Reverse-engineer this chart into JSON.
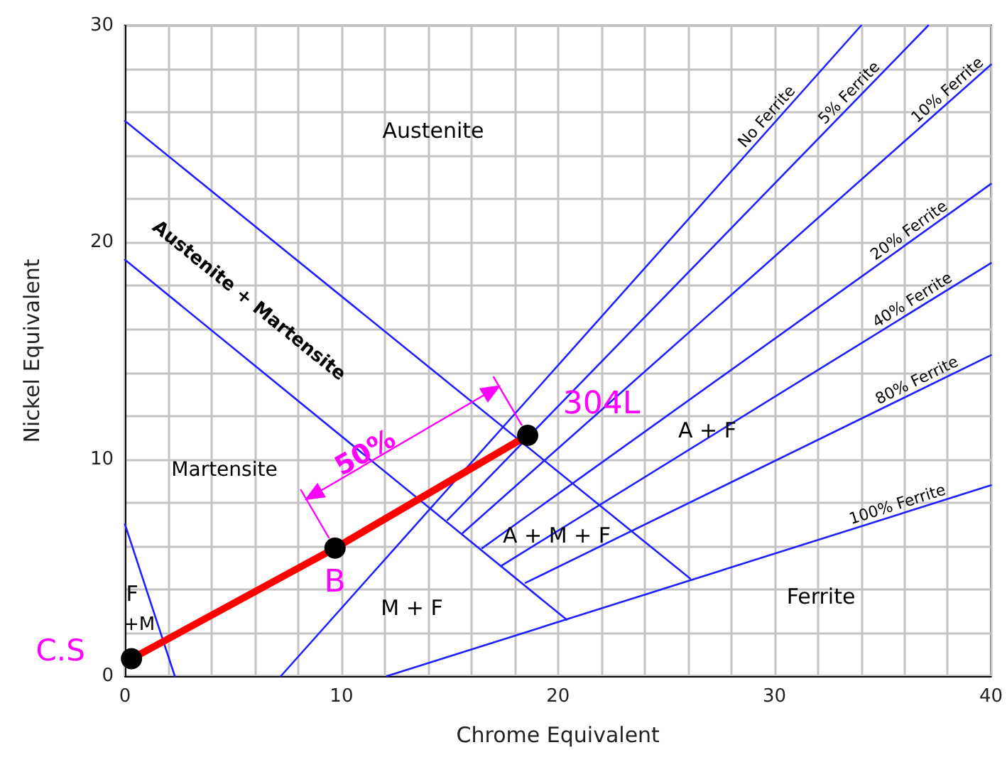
{
  "chart_data": {
    "type": "line",
    "xlabel": "Chrome Equivalent",
    "ylabel": "Nickel Equivalent",
    "xlim": [
      0,
      40
    ],
    "ylim": [
      0,
      30
    ],
    "xticks": [
      0,
      {
        "value": 2,
        "label": null
      },
      {
        "value": 4,
        "label": null
      },
      {
        "value": 6,
        "label": null
      },
      {
        "value": 8,
        "label": null
      },
      10,
      {
        "value": 12,
        "label": null
      },
      {
        "value": 14,
        "label": null
      },
      {
        "value": 16,
        "label": null
      },
      {
        "value": 18,
        "label": null
      },
      20,
      {
        "value": 22,
        "label": null
      },
      {
        "value": 24,
        "label": null
      },
      {
        "value": 26,
        "label": null
      },
      {
        "value": 28,
        "label": null
      },
      30,
      {
        "value": 32,
        "label": null
      },
      {
        "value": 34,
        "label": null
      },
      {
        "value": 36,
        "label": null
      },
      {
        "value": 38,
        "label": null
      },
      40
    ],
    "yticks": [
      0,
      {
        "value": 2,
        "label": null
      },
      {
        "value": 4,
        "label": null
      },
      {
        "value": 6,
        "label": null
      },
      {
        "value": 8,
        "label": null
      },
      10,
      {
        "value": 12,
        "label": null
      },
      {
        "value": 14,
        "label": null
      },
      {
        "value": 16,
        "label": null
      },
      {
        "value": 18,
        "label": null
      },
      20,
      {
        "value": 22,
        "label": null
      },
      {
        "value": 24,
        "label": null
      },
      {
        "value": 26,
        "label": null
      },
      {
        "value": 28,
        "label": null
      },
      30
    ],
    "grid": true,
    "marker": "none",
    "line_style": "solid",
    "series": [
      {
        "color": "#2020ff",
        "x": [
          0,
          26.1
        ],
        "values": [
          25.6,
          4.5
        ]
      },
      {
        "color": "#2020ff",
        "x": [
          0,
          20.4
        ],
        "values": [
          19.2,
          2.6
        ]
      },
      {
        "color": "#2020ff",
        "x": [
          0,
          2.3
        ],
        "values": [
          7.0,
          0
        ]
      },
      {
        "name": "No Ferrite",
        "color": "#2020ff",
        "x": [
          7.2,
          34
        ],
        "values": [
          0,
          30
        ]
      },
      {
        "name": "5% Ferrite",
        "color": "#2020ff",
        "x": [
          14.9,
          37.1
        ],
        "values": [
          7.2,
          30
        ]
      },
      {
        "name": "10% Ferrite",
        "color": "#2020ff",
        "x": [
          15.6,
          40
        ],
        "values": [
          6.6,
          28.2
        ]
      },
      {
        "name": "20% Ferrite",
        "color": "#2020ff",
        "x": [
          16.5,
          40
        ],
        "values": [
          5.9,
          22.7
        ]
      },
      {
        "name": "40% Ferrite",
        "color": "#2020ff",
        "x": [
          17.4,
          40
        ],
        "values": [
          5.1,
          19.05
        ]
      },
      {
        "name": "80% Ferrite",
        "color": "#2020ff",
        "x": [
          18.5,
          40
        ],
        "values": [
          4.3,
          14.8
        ]
      },
      {
        "name": "100% Ferrite",
        "color": "#2020ff",
        "x": [
          12.1,
          40
        ],
        "values": [
          0,
          8.8
        ]
      },
      {
        "color": "#ff0000",
        "x": [
          0.3,
          9.7,
          18.6
        ],
        "values": [
          0.8,
          5.9,
          11.1
        ],
        "marker": "circle"
      }
    ],
    "annotations": [
      "Austenite",
      "Austenite + Martensite",
      "Martensite",
      "F",
      "+M",
      "M + F",
      "A + M + F",
      "A + F",
      "Ferrite",
      {
        "text": "50%",
        "x": 11.1,
        "y": 10.3
      },
      {
        "text": "C.S",
        "x": 0.3,
        "y": 0.8
      },
      {
        "text": "B",
        "x": 9.7,
        "y": 5.9
      },
      {
        "text": "304L",
        "x": 18.6,
        "y": 11.1
      }
    ]
  }
}
